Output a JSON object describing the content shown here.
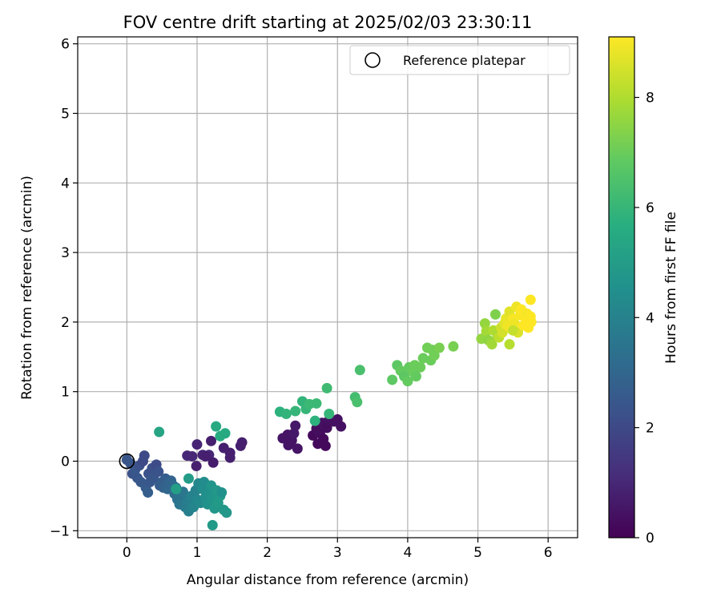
{
  "chart_data": {
    "type": "scatter",
    "title": "FOV centre drift starting at 2025/02/03 23:30:11",
    "xlabel": "Angular distance from reference (arcmin)",
    "ylabel": "Rotation from reference (arcmin)",
    "xlim": [
      -0.7,
      6.42
    ],
    "ylim": [
      -1.1,
      6.1
    ],
    "xticks": [
      0,
      1,
      2,
      3,
      4,
      5,
      6
    ],
    "yticks": [
      -1,
      0,
      1,
      2,
      3,
      4,
      5,
      6
    ],
    "grid": true,
    "legend": {
      "placement": "top-right",
      "entries": [
        {
          "label": "Reference platepar",
          "marker": "open-circle",
          "color": "#000000"
        }
      ]
    },
    "reference_point": {
      "x": 0,
      "y": 0
    },
    "colorbar": {
      "label": "Hours from first FF file",
      "colormap": "viridis",
      "range": [
        0,
        9.1
      ],
      "ticks": [
        0,
        2,
        4,
        6,
        8
      ]
    },
    "points": [
      {
        "x": 0.86,
        "y": 0.08,
        "h": 1.0
      },
      {
        "x": 0.93,
        "y": 0.07,
        "h": 1.0
      },
      {
        "x": 1.0,
        "y": 0.24,
        "h": 0.9
      },
      {
        "x": 1.08,
        "y": 0.09,
        "h": 0.9
      },
      {
        "x": 1.17,
        "y": 0.09,
        "h": 1.0
      },
      {
        "x": 1.12,
        "y": 0.07,
        "h": 0.8
      },
      {
        "x": 1.2,
        "y": 0.29,
        "h": 0.8
      },
      {
        "x": 1.23,
        "y": -0.02,
        "h": 0.7
      },
      {
        "x": 0.99,
        "y": -0.07,
        "h": 0.8
      },
      {
        "x": 1.38,
        "y": 0.19,
        "h": 0.8
      },
      {
        "x": 1.47,
        "y": 0.12,
        "h": 0.8
      },
      {
        "x": 1.47,
        "y": 0.05,
        "h": 0.8
      },
      {
        "x": 1.62,
        "y": 0.22,
        "h": 0.8
      },
      {
        "x": 1.64,
        "y": 0.27,
        "h": 0.8
      },
      {
        "x": 2.22,
        "y": 0.33,
        "h": 0.5
      },
      {
        "x": 2.29,
        "y": 0.38,
        "h": 0.5
      },
      {
        "x": 2.3,
        "y": 0.23,
        "h": 0.5
      },
      {
        "x": 2.35,
        "y": 0.3,
        "h": 0.5
      },
      {
        "x": 2.38,
        "y": 0.4,
        "h": 0.6
      },
      {
        "x": 2.4,
        "y": 0.51,
        "h": 0.6
      },
      {
        "x": 2.43,
        "y": 0.18,
        "h": 0.5
      },
      {
        "x": 2.65,
        "y": 0.37,
        "h": 0.2
      },
      {
        "x": 2.7,
        "y": 0.47,
        "h": 0.3
      },
      {
        "x": 2.72,
        "y": 0.25,
        "h": 0.2
      },
      {
        "x": 2.75,
        "y": 0.4,
        "h": 0.3
      },
      {
        "x": 2.78,
        "y": 0.55,
        "h": 0.4
      },
      {
        "x": 2.8,
        "y": 0.32,
        "h": 0.2
      },
      {
        "x": 2.83,
        "y": 0.22,
        "h": 0.2
      },
      {
        "x": 2.85,
        "y": 0.48,
        "h": 0.3
      },
      {
        "x": 2.88,
        "y": 0.59,
        "h": 0.4
      },
      {
        "x": 2.95,
        "y": 0.57,
        "h": 0.4
      },
      {
        "x": 3.0,
        "y": 0.6,
        "h": 0.4
      },
      {
        "x": 3.05,
        "y": 0.5,
        "h": 0.4
      },
      {
        "x": 0.0,
        "y": 0.02,
        "h": 2.4
      },
      {
        "x": 0.05,
        "y": -0.03,
        "h": 2.4
      },
      {
        "x": 0.08,
        "y": -0.18,
        "h": 2.3
      },
      {
        "x": 0.12,
        "y": -0.12,
        "h": 2.5
      },
      {
        "x": 0.15,
        "y": -0.24,
        "h": 2.4
      },
      {
        "x": 0.18,
        "y": -0.06,
        "h": 2.2
      },
      {
        "x": 0.2,
        "y": -0.3,
        "h": 2.5
      },
      {
        "x": 0.23,
        "y": 0.0,
        "h": 2.0
      },
      {
        "x": 0.25,
        "y": 0.08,
        "h": 2.0
      },
      {
        "x": 0.27,
        "y": -0.38,
        "h": 2.6
      },
      {
        "x": 0.3,
        "y": -0.45,
        "h": 2.7
      },
      {
        "x": 0.31,
        "y": -0.18,
        "h": 2.3
      },
      {
        "x": 0.33,
        "y": -0.3,
        "h": 2.5
      },
      {
        "x": 0.36,
        "y": -0.1,
        "h": 2.2
      },
      {
        "x": 0.38,
        "y": -0.24,
        "h": 2.4
      },
      {
        "x": 0.42,
        "y": -0.05,
        "h": 2.1
      },
      {
        "x": 0.45,
        "y": -0.15,
        "h": 2.3
      },
      {
        "x": 0.47,
        "y": -0.35,
        "h": 2.6
      },
      {
        "x": 0.5,
        "y": -0.3,
        "h": 2.7
      },
      {
        "x": 0.52,
        "y": -0.38,
        "h": 2.8
      },
      {
        "x": 0.55,
        "y": -0.25,
        "h": 2.7
      },
      {
        "x": 0.58,
        "y": -0.4,
        "h": 3.0
      },
      {
        "x": 0.6,
        "y": -0.32,
        "h": 2.9
      },
      {
        "x": 0.63,
        "y": -0.28,
        "h": 2.9
      },
      {
        "x": 0.66,
        "y": -0.35,
        "h": 3.1
      },
      {
        "x": 0.68,
        "y": -0.47,
        "h": 3.2
      },
      {
        "x": 0.7,
        "y": -0.38,
        "h": 3.3
      },
      {
        "x": 0.72,
        "y": -0.55,
        "h": 3.4
      },
      {
        "x": 0.75,
        "y": -0.62,
        "h": 3.6
      },
      {
        "x": 0.78,
        "y": -0.5,
        "h": 3.5
      },
      {
        "x": 0.8,
        "y": -0.44,
        "h": 3.6
      },
      {
        "x": 0.83,
        "y": -0.66,
        "h": 3.7
      },
      {
        "x": 0.86,
        "y": -0.58,
        "h": 3.8
      },
      {
        "x": 0.88,
        "y": -0.72,
        "h": 3.9
      },
      {
        "x": 0.9,
        "y": -0.6,
        "h": 3.9
      },
      {
        "x": 0.92,
        "y": -0.5,
        "h": 4.0
      },
      {
        "x": 0.95,
        "y": -0.66,
        "h": 4.1
      },
      {
        "x": 0.98,
        "y": -0.42,
        "h": 4.0
      },
      {
        "x": 1.0,
        "y": -0.55,
        "h": 4.2
      },
      {
        "x": 1.02,
        "y": -0.32,
        "h": 4.2
      },
      {
        "x": 1.05,
        "y": -0.6,
        "h": 4.3
      },
      {
        "x": 1.08,
        "y": -0.4,
        "h": 4.4
      },
      {
        "x": 1.1,
        "y": -0.3,
        "h": 4.4
      },
      {
        "x": 1.12,
        "y": -0.52,
        "h": 4.5
      },
      {
        "x": 1.15,
        "y": -0.62,
        "h": 4.6
      },
      {
        "x": 1.18,
        "y": -0.45,
        "h": 4.6
      },
      {
        "x": 1.2,
        "y": -0.35,
        "h": 4.7
      },
      {
        "x": 1.22,
        "y": -0.55,
        "h": 4.7
      },
      {
        "x": 1.25,
        "y": -0.68,
        "h": 4.8
      },
      {
        "x": 1.28,
        "y": -0.42,
        "h": 4.8
      },
      {
        "x": 1.3,
        "y": -0.6,
        "h": 4.9
      },
      {
        "x": 1.33,
        "y": -0.5,
        "h": 4.9
      },
      {
        "x": 1.35,
        "y": -0.45,
        "h": 4.6
      },
      {
        "x": 1.38,
        "y": -0.7,
        "h": 4.8
      },
      {
        "x": 1.42,
        "y": -0.74,
        "h": 4.8
      },
      {
        "x": 1.22,
        "y": -0.92,
        "h": 4.9
      },
      {
        "x": 0.88,
        "y": -0.25,
        "h": 5.0
      },
      {
        "x": 0.7,
        "y": -0.4,
        "h": 5.1
      },
      {
        "x": 0.46,
        "y": 0.42,
        "h": 5.3
      },
      {
        "x": 1.27,
        "y": 0.5,
        "h": 5.5
      },
      {
        "x": 1.33,
        "y": 0.36,
        "h": 5.6
      },
      {
        "x": 1.4,
        "y": 0.4,
        "h": 5.5
      },
      {
        "x": 2.18,
        "y": 0.71,
        "h": 5.8
      },
      {
        "x": 2.27,
        "y": 0.68,
        "h": 5.9
      },
      {
        "x": 2.4,
        "y": 0.72,
        "h": 6.0
      },
      {
        "x": 2.5,
        "y": 0.86,
        "h": 5.9
      },
      {
        "x": 2.55,
        "y": 0.75,
        "h": 6.0
      },
      {
        "x": 2.6,
        "y": 0.82,
        "h": 6.1
      },
      {
        "x": 2.68,
        "y": 0.58,
        "h": 5.8
      },
      {
        "x": 2.7,
        "y": 0.83,
        "h": 6.1
      },
      {
        "x": 2.85,
        "y": 1.05,
        "h": 6.2
      },
      {
        "x": 2.88,
        "y": 0.68,
        "h": 6.0
      },
      {
        "x": 3.25,
        "y": 0.92,
        "h": 6.3
      },
      {
        "x": 3.28,
        "y": 0.85,
        "h": 6.4
      },
      {
        "x": 3.32,
        "y": 1.31,
        "h": 6.4
      },
      {
        "x": 3.78,
        "y": 1.17,
        "h": 6.8
      },
      {
        "x": 3.85,
        "y": 1.38,
        "h": 6.8
      },
      {
        "x": 3.9,
        "y": 1.3,
        "h": 6.9
      },
      {
        "x": 3.95,
        "y": 1.22,
        "h": 6.8
      },
      {
        "x": 4.0,
        "y": 1.15,
        "h": 6.9
      },
      {
        "x": 4.02,
        "y": 1.35,
        "h": 6.9
      },
      {
        "x": 4.08,
        "y": 1.28,
        "h": 7.0
      },
      {
        "x": 4.1,
        "y": 1.38,
        "h": 7.0
      },
      {
        "x": 4.12,
        "y": 1.22,
        "h": 6.9
      },
      {
        "x": 4.18,
        "y": 1.35,
        "h": 7.0
      },
      {
        "x": 4.22,
        "y": 1.48,
        "h": 7.0
      },
      {
        "x": 4.28,
        "y": 1.63,
        "h": 7.1
      },
      {
        "x": 4.33,
        "y": 1.45,
        "h": 7.0
      },
      {
        "x": 4.35,
        "y": 1.6,
        "h": 7.1
      },
      {
        "x": 4.38,
        "y": 1.52,
        "h": 7.1
      },
      {
        "x": 4.45,
        "y": 1.63,
        "h": 7.2
      },
      {
        "x": 4.65,
        "y": 1.65,
        "h": 7.2
      },
      {
        "x": 5.05,
        "y": 1.76,
        "h": 7.6
      },
      {
        "x": 5.1,
        "y": 1.98,
        "h": 7.6
      },
      {
        "x": 5.12,
        "y": 1.87,
        "h": 7.8
      },
      {
        "x": 5.15,
        "y": 1.74,
        "h": 7.5
      },
      {
        "x": 5.18,
        "y": 1.72,
        "h": 7.6
      },
      {
        "x": 5.2,
        "y": 1.68,
        "h": 7.8
      },
      {
        "x": 5.22,
        "y": 1.88,
        "h": 8.0
      },
      {
        "x": 5.25,
        "y": 2.11,
        "h": 7.3
      },
      {
        "x": 5.28,
        "y": 1.82,
        "h": 7.9
      },
      {
        "x": 5.3,
        "y": 1.78,
        "h": 8.2
      },
      {
        "x": 5.33,
        "y": 1.92,
        "h": 8.4
      },
      {
        "x": 5.35,
        "y": 1.85,
        "h": 8.5
      },
      {
        "x": 5.38,
        "y": 1.98,
        "h": 8.7
      },
      {
        "x": 5.4,
        "y": 2.05,
        "h": 8.8
      },
      {
        "x": 5.42,
        "y": 1.95,
        "h": 8.9
      },
      {
        "x": 5.45,
        "y": 1.68,
        "h": 8.1
      },
      {
        "x": 5.45,
        "y": 2.15,
        "h": 8.7
      },
      {
        "x": 5.48,
        "y": 1.9,
        "h": 9.0
      },
      {
        "x": 5.5,
        "y": 2.05,
        "h": 9.0
      },
      {
        "x": 5.52,
        "y": 1.98,
        "h": 8.9
      },
      {
        "x": 5.55,
        "y": 2.22,
        "h": 8.9
      },
      {
        "x": 5.57,
        "y": 1.85,
        "h": 8.6
      },
      {
        "x": 5.6,
        "y": 2.1,
        "h": 9.0
      },
      {
        "x": 5.62,
        "y": 2.18,
        "h": 9.1
      },
      {
        "x": 5.65,
        "y": 1.95,
        "h": 9.1
      },
      {
        "x": 5.68,
        "y": 2.05,
        "h": 9.1
      },
      {
        "x": 5.7,
        "y": 2.12,
        "h": 9.0
      },
      {
        "x": 5.72,
        "y": 1.92,
        "h": 9.1
      },
      {
        "x": 5.75,
        "y": 2.32,
        "h": 9.1
      },
      {
        "x": 5.75,
        "y": 2.08,
        "h": 9.1
      },
      {
        "x": 5.76,
        "y": 2.0,
        "h": 9.1
      },
      {
        "x": 5.5,
        "y": 1.88,
        "h": 8.3
      }
    ]
  }
}
